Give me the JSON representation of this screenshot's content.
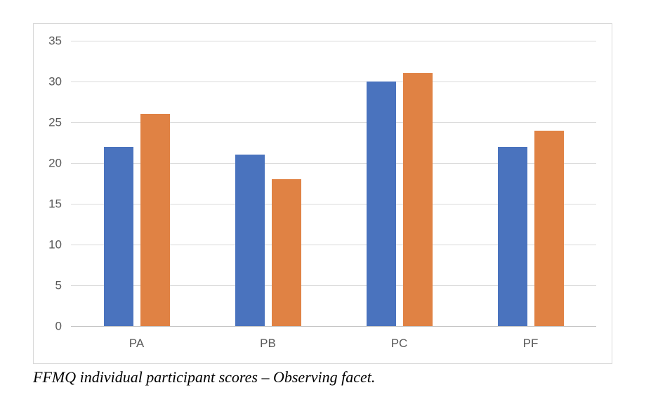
{
  "figure": {
    "caption": "FFMQ individual participant scores – Observing facet."
  },
  "chart_data": {
    "type": "bar",
    "title": "",
    "xlabel": "",
    "ylabel": "",
    "categories": [
      "PA",
      "PB",
      "PC",
      "PF"
    ],
    "series": [
      {
        "name": "blue-series",
        "color": "#4A73BE",
        "values": [
          22,
          21,
          30,
          22
        ]
      },
      {
        "name": "orange-series",
        "color": "#E08244",
        "values": [
          26,
          18,
          31,
          24
        ]
      }
    ],
    "ylim": [
      0,
      35
    ],
    "yticks": [
      0,
      5,
      10,
      15,
      20,
      25,
      30,
      35
    ],
    "grid": true,
    "legend_position": "none",
    "colors": {
      "gridline": "#d9d9d9",
      "axis_line": "#c4c4c4",
      "tick_label": "#595959",
      "panel_border": "#d8d8d8",
      "background": "#ffffff"
    }
  }
}
